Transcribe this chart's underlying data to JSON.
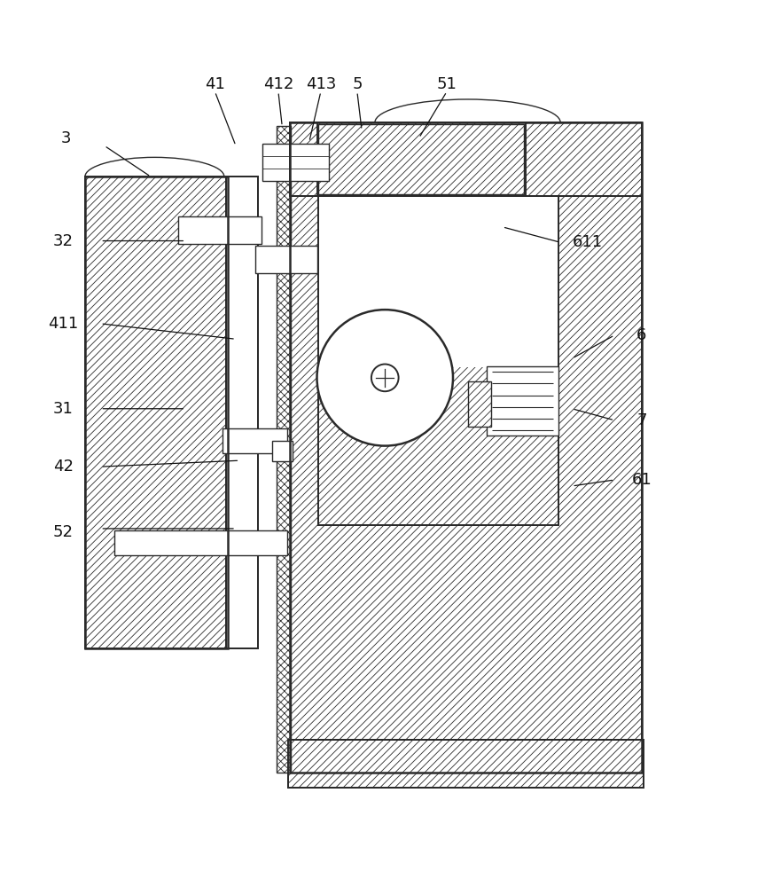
{
  "bg_color": "#ffffff",
  "line_color": "#2a2a2a",
  "hatch_color": "#888888",
  "label_color": "#111111",
  "fig_width": 8.72,
  "fig_height": 10.0,
  "label_fontsize": 13,
  "label_data": {
    "3": [
      0.085,
      0.895,
      0.135,
      0.885,
      0.195,
      0.845
    ],
    "32": [
      0.082,
      0.762,
      0.13,
      0.762,
      0.24,
      0.762
    ],
    "411": [
      0.082,
      0.655,
      0.13,
      0.655,
      0.305,
      0.635
    ],
    "31": [
      0.082,
      0.545,
      0.13,
      0.545,
      0.24,
      0.545
    ],
    "42": [
      0.082,
      0.47,
      0.13,
      0.47,
      0.31,
      0.478
    ],
    "52": [
      0.082,
      0.385,
      0.13,
      0.39,
      0.305,
      0.39
    ],
    "41": [
      0.278,
      0.965,
      0.278,
      0.955,
      0.305,
      0.885
    ],
    "412": [
      0.36,
      0.965,
      0.36,
      0.955,
      0.365,
      0.91
    ],
    "413": [
      0.415,
      0.965,
      0.415,
      0.955,
      0.4,
      0.89
    ],
    "5": [
      0.462,
      0.965,
      0.462,
      0.955,
      0.468,
      0.905
    ],
    "51": [
      0.578,
      0.965,
      0.578,
      0.955,
      0.542,
      0.895
    ],
    "611": [
      0.76,
      0.76,
      0.725,
      0.76,
      0.65,
      0.78
    ],
    "6": [
      0.83,
      0.64,
      0.795,
      0.64,
      0.74,
      0.61
    ],
    "7": [
      0.83,
      0.53,
      0.795,
      0.53,
      0.74,
      0.545
    ],
    "61": [
      0.83,
      0.453,
      0.795,
      0.453,
      0.74,
      0.445
    ]
  }
}
